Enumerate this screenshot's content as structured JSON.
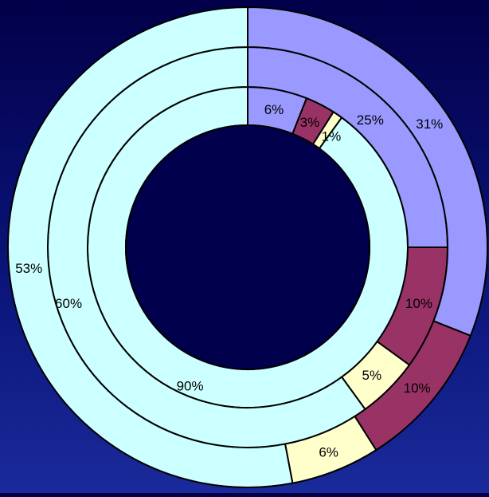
{
  "chart_data": {
    "type": "donut",
    "title": "",
    "legend": "none",
    "colors": {
      "background": "#020049",
      "hole": "#01004d",
      "outline": "#000000",
      "palette": [
        "#9999ff",
        "#993366",
        "#ffffcc",
        "#ccffff"
      ]
    },
    "rings": [
      {
        "name": "",
        "position": "inner",
        "values": [
          6,
          3,
          1,
          90
        ],
        "labels": [
          "6%",
          "3%",
          "1%",
          "90%"
        ]
      },
      {
        "name": "",
        "position": "middle",
        "values": [
          25,
          10,
          5,
          60
        ],
        "labels": [
          "25%",
          "10%",
          "5%",
          "60%"
        ]
      },
      {
        "name": "",
        "position": "outer",
        "values": [
          31,
          10,
          6,
          53
        ],
        "labels": [
          "31%",
          "10%",
          "6%",
          "53%"
        ]
      }
    ]
  }
}
